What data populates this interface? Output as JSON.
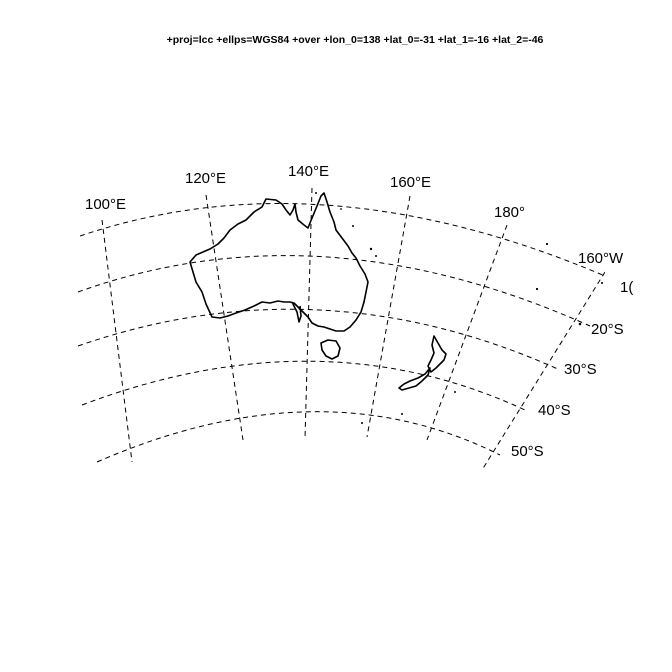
{
  "map": {
    "title": "+proj=lcc +ellps=WGS84 +over +lon_0=138 +lat_0=-31 +lat_1=-16 +lat_2=-46",
    "meridian_labels": [
      "100°E",
      "120°E",
      "140°E",
      "160°E",
      "180°",
      "160°W",
      "1("
    ],
    "parallel_labels": [
      "20°S",
      "30°S",
      "40°S",
      "50°S"
    ],
    "regions": [
      "Australia",
      "Tasmania",
      "New Zealand North Island",
      "New Zealand South Island"
    ]
  }
}
